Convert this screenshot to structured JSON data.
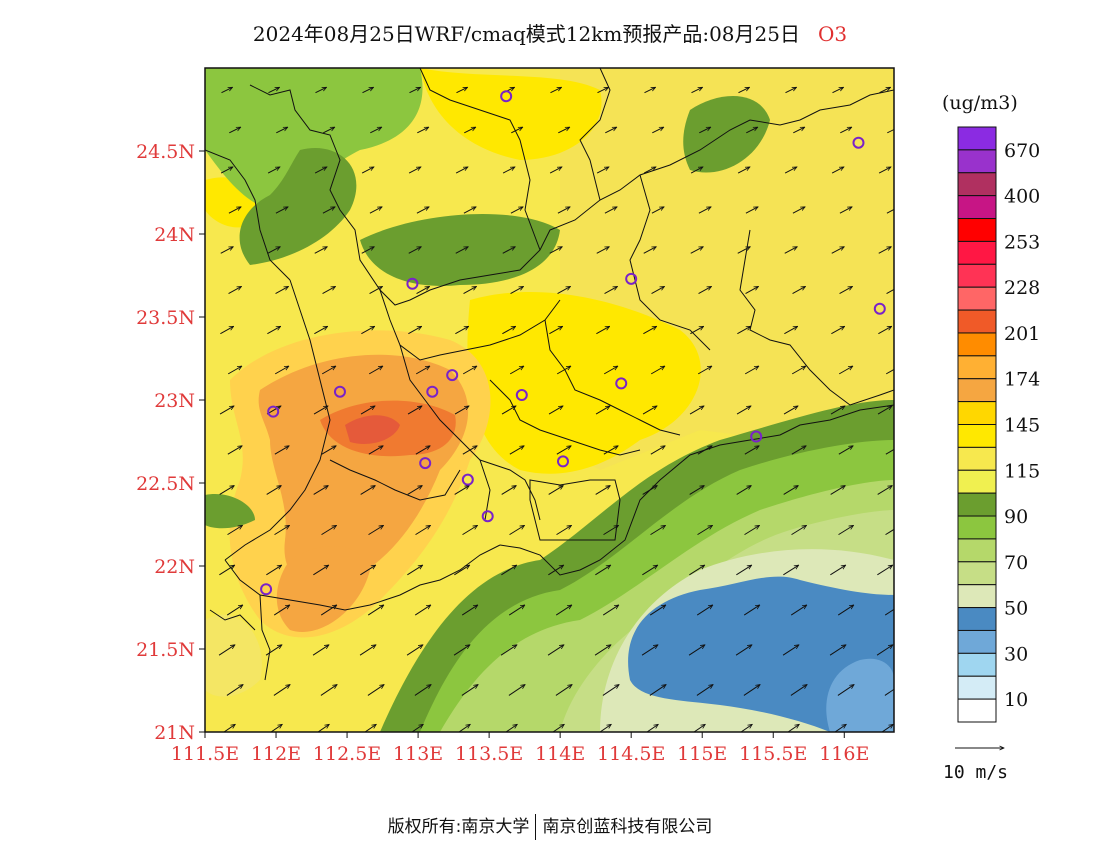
{
  "title": {
    "main": "2024年08月25日WRF/cmaq模式12km预报产品:08月25日",
    "species": "O3"
  },
  "map": {
    "lat_ticks": [
      "24.5N",
      "24N",
      "23.5N",
      "23N",
      "22.5N",
      "22N",
      "21.5N",
      "21N"
    ],
    "lon_ticks": [
      "111.5E",
      "112E",
      "112.5E",
      "113E",
      "113.5E",
      "114E",
      "114.5E",
      "115E",
      "115.5E",
      "116E"
    ],
    "extent": {
      "lon_min": 111.5,
      "lon_max": 116.35,
      "lat_min": 21.0,
      "lat_max": 25.0
    },
    "stations": [
      {
        "lon": 113.62,
        "lat": 24.83
      },
      {
        "lon": 116.1,
        "lat": 24.55
      },
      {
        "lon": 112.96,
        "lat": 23.7
      },
      {
        "lon": 114.5,
        "lat": 23.73
      },
      {
        "lon": 116.25,
        "lat": 23.55
      },
      {
        "lon": 113.24,
        "lat": 23.15
      },
      {
        "lon": 112.45,
        "lat": 23.05
      },
      {
        "lon": 113.1,
        "lat": 23.05
      },
      {
        "lon": 113.73,
        "lat": 23.03
      },
      {
        "lon": 114.43,
        "lat": 23.1
      },
      {
        "lon": 111.98,
        "lat": 22.93
      },
      {
        "lon": 113.05,
        "lat": 22.62
      },
      {
        "lon": 114.02,
        "lat": 22.63
      },
      {
        "lon": 113.35,
        "lat": 22.52
      },
      {
        "lon": 113.49,
        "lat": 22.3
      },
      {
        "lon": 115.38,
        "lat": 22.78
      },
      {
        "lon": 111.93,
        "lat": 21.86
      }
    ]
  },
  "legend": {
    "unit": "(ug/m3)",
    "colors": [
      "#8b2be2",
      "#9932cc",
      "#b03060",
      "#c71585",
      "#ff0000",
      "#ff1744",
      "#ff3355",
      "#ff6666",
      "#f05a28",
      "#ff8c00",
      "#ffb033",
      "#f5a641",
      "#ffd700",
      "#ffe800",
      "#f7e84e",
      "#f0f050",
      "#6b9e2f",
      "#8cc63f",
      "#b5d86a",
      "#c6de86",
      "#dde8b8",
      "#4a8ac2",
      "#6fa8d8",
      "#9fd6f0",
      "#d4ecf6",
      "#ffffff"
    ],
    "labels": [
      "670",
      "400",
      "253",
      "228",
      "201",
      "174",
      "145",
      "115",
      "90",
      "70",
      "50",
      "30",
      "10"
    ]
  },
  "wind_reference": {
    "label": "10  m/s"
  },
  "copyright": {
    "left": "版权所有:南京大学",
    "right": "南京创蓝科技有限公司"
  }
}
